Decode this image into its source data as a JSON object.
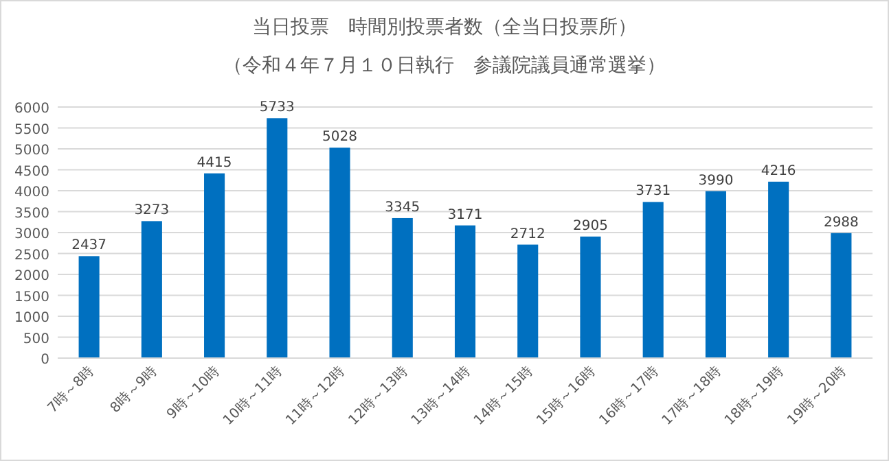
{
  "chart_data": {
    "type": "bar",
    "title": "当日投票　時間別投票者数（全当日投票所）",
    "subtitle": "（令和４年７月１０日執行　参議院議員通常選挙）",
    "categories": [
      "7時～8時",
      "8時～9時",
      "9時～10時",
      "10時～11時",
      "11時～12時",
      "12時～13時",
      "13時～14時",
      "14時～15時",
      "15時～16時",
      "16時～17時",
      "17時～18時",
      "18時～19時",
      "19時～20時"
    ],
    "values": [
      2437,
      3273,
      4415,
      5733,
      5028,
      3345,
      3171,
      2712,
      2905,
      3731,
      3990,
      4216,
      2988
    ],
    "color": "#0070c0",
    "ylim": [
      0,
      6000
    ],
    "yticks": [
      0,
      500,
      1000,
      1500,
      2000,
      2500,
      3000,
      3500,
      4000,
      4500,
      5000,
      5500,
      6000
    ],
    "grid": "y",
    "data_labels": true
  }
}
